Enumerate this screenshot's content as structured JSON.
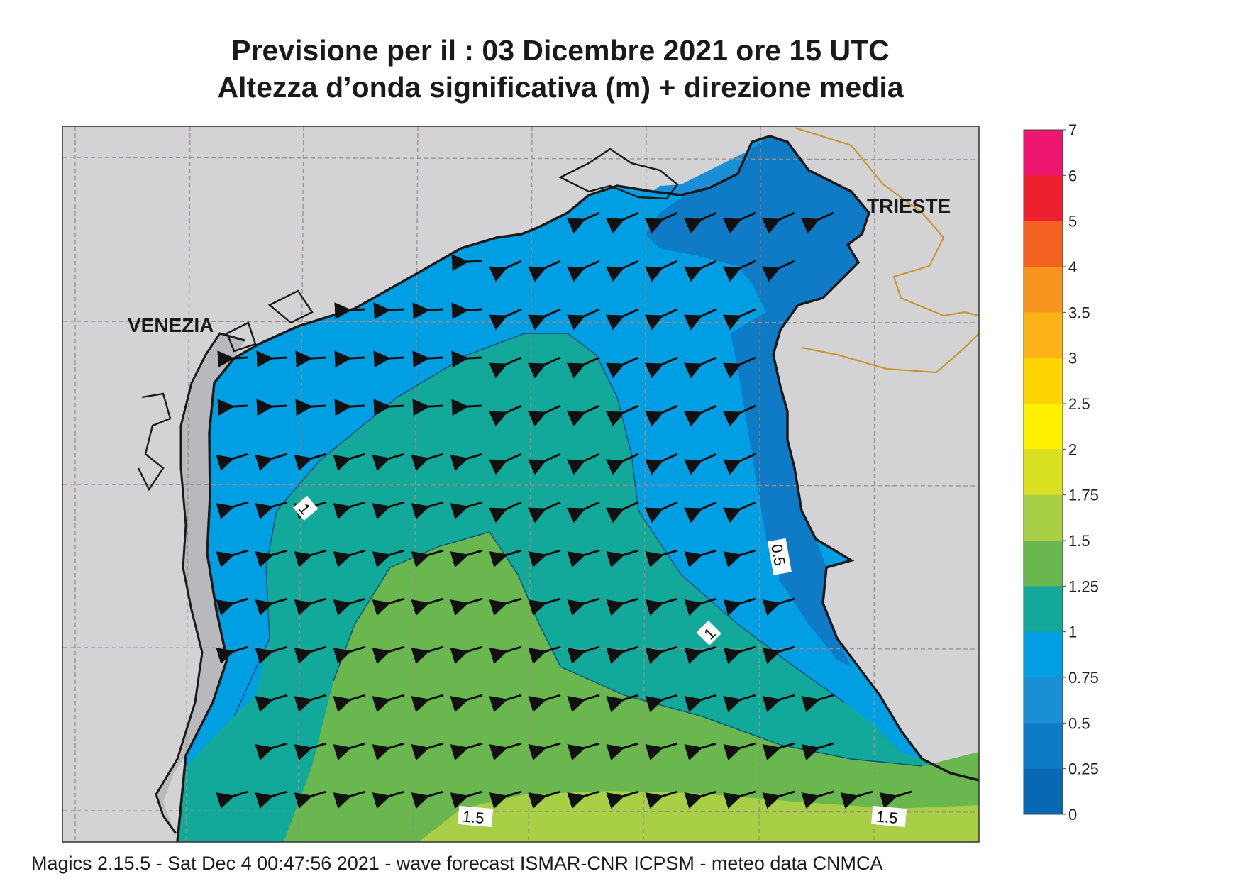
{
  "header": {
    "title_line1": "Previsione per il  :  03 Dicembre  2021   ore 15 UTC",
    "title_line2": "Altezza d’onda significativa (m) + direzione media"
  },
  "map": {
    "region": "Adriatico settentrionale",
    "place_labels": [
      "VENEZIA",
      "TRIESTE"
    ],
    "contour_labels": [
      "1",
      "0.5",
      "1",
      "1.5",
      "1.5"
    ],
    "wave_direction": "da est-nord-est verso ovest-sud-ovest",
    "land_color": "#d3d3d6",
    "coast_color": "#1a1a1a",
    "border_color": "#c8962e",
    "grid_color": "#9a8f80"
  },
  "legend": {
    "labels": [
      "7",
      "6",
      "5",
      "4",
      "3.5",
      "3",
      "2.5",
      "2",
      "1.75",
      "1.5",
      "1.25",
      "1",
      "0.75",
      "0.5",
      "0.25",
      "0"
    ],
    "colors_top_to_bottom": [
      "#ef1672",
      "#ee2030",
      "#f46221",
      "#f7941d",
      "#fcb317",
      "#ffd400",
      "#fff200",
      "#d9e021",
      "#a8cf45",
      "#6ab750",
      "#12a89a",
      "#009fe3",
      "#1b8fd6",
      "#0f7ac5",
      "#0a67b3"
    ]
  },
  "footer": {
    "text": "Magics 2.15.5 - Sat Dec  4 00:47:56 2021 - wave forecast  ISMAR-CNR  ICPSM - meteo data   CNMCA"
  }
}
